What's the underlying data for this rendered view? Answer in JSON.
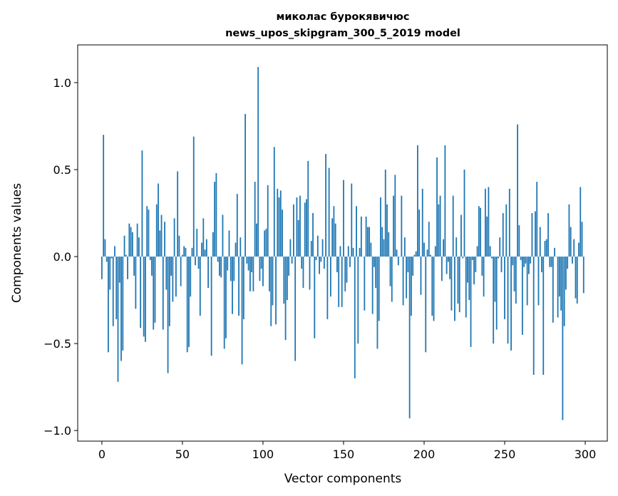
{
  "chart_data": {
    "type": "bar",
    "title": [
      "миколас бурокявичюс",
      "news_upos_skipgram_300_5_2019 model"
    ],
    "xlabel": "Vector components",
    "ylabel": "Components values",
    "xlim": [
      -15,
      313.7
    ],
    "ylim": [
      -1.061,
      1.217
    ],
    "xticks": [
      0,
      50,
      100,
      150,
      200,
      250,
      300
    ],
    "xtick_labels": [
      "0",
      "50",
      "100",
      "150",
      "200",
      "250",
      "300"
    ],
    "yticks": [
      -1.0,
      -0.5,
      0.0,
      0.5,
      1.0
    ],
    "ytick_labels": [
      "−1.0",
      "−0.5",
      "0.0",
      "0.5",
      "1.0"
    ],
    "grid": false,
    "bar_color": "#1f77b4",
    "values": [
      -0.13,
      0.7,
      0.1,
      -0.03,
      -0.55,
      -0.19,
      -0.01,
      -0.4,
      0.06,
      -0.36,
      -0.72,
      -0.15,
      -0.6,
      -0.54,
      0.12,
      0.01,
      -0.13,
      0.19,
      0.17,
      0.14,
      -0.11,
      -0.3,
      0.19,
      0.11,
      -0.41,
      0.61,
      -0.46,
      -0.49,
      0.29,
      0.27,
      -0.02,
      -0.11,
      -0.42,
      -0.38,
      0.3,
      0.42,
      0.15,
      0.24,
      -0.42,
      0.2,
      -0.19,
      -0.67,
      -0.4,
      -0.11,
      -0.26,
      0.22,
      -0.23,
      0.49,
      0.12,
      -0.17,
      0.01,
      0.06,
      0.05,
      -0.55,
      -0.52,
      -0.23,
      0.05,
      0.69,
      -0.05,
      0.16,
      -0.07,
      -0.34,
      0.08,
      0.22,
      0.04,
      0.1,
      -0.18,
      0.0,
      -0.57,
      0.14,
      0.43,
      0.48,
      -0.03,
      -0.11,
      -0.12,
      0.24,
      -0.53,
      -0.47,
      -0.08,
      0.15,
      -0.14,
      -0.33,
      -0.14,
      0.08,
      0.36,
      -0.34,
      0.11,
      -0.62,
      -0.36,
      0.82,
      -0.04,
      -0.08,
      -0.2,
      -0.09,
      -0.2,
      0.43,
      0.19,
      1.09,
      -0.14,
      -0.07,
      -0.17,
      0.15,
      0.16,
      0.41,
      -0.2,
      -0.4,
      -0.28,
      0.63,
      -0.39,
      0.39,
      0.34,
      0.38,
      0.27,
      -0.27,
      -0.48,
      -0.25,
      -0.11,
      0.1,
      -0.04,
      0.3,
      -0.6,
      0.34,
      0.21,
      0.35,
      -0.07,
      -0.18,
      0.31,
      0.33,
      0.55,
      -0.19,
      0.09,
      0.25,
      -0.47,
      -0.02,
      0.12,
      -0.1,
      -0.03,
      0.1,
      -0.07,
      0.59,
      -0.36,
      0.51,
      -0.23,
      0.22,
      0.29,
      0.19,
      -0.09,
      -0.29,
      0.06,
      -0.29,
      0.44,
      -0.2,
      -0.15,
      0.06,
      -0.06,
      0.42,
      0.05,
      -0.7,
      0.29,
      -0.5,
      0.05,
      0.23,
      0.0,
      -0.31,
      0.23,
      0.17,
      0.17,
      0.08,
      -0.33,
      -0.06,
      -0.18,
      -0.53,
      -0.37,
      0.34,
      0.17,
      0.1,
      0.5,
      0.3,
      0.14,
      -0.17,
      -0.26,
      0.35,
      0.47,
      0.04,
      -0.05,
      0.0,
      0.35,
      -0.28,
      0.11,
      -0.24,
      -0.09,
      -0.93,
      -0.34,
      -0.11,
      0.01,
      0.03,
      0.64,
      0.27,
      -0.22,
      0.39,
      0.08,
      -0.55,
      0.04,
      0.2,
      0.01,
      -0.34,
      -0.37,
      0.06,
      0.57,
      0.3,
      0.35,
      -0.14,
      0.1,
      0.64,
      -0.1,
      -0.03,
      -0.13,
      -0.31,
      0.35,
      -0.37,
      0.11,
      -0.27,
      -0.32,
      0.24,
      -0.01,
      0.5,
      -0.35,
      -0.15,
      -0.25,
      -0.52,
      -0.02,
      -0.16,
      -0.09,
      0.06,
      0.29,
      0.28,
      -0.11,
      -0.23,
      0.39,
      0.23,
      0.4,
      0.06,
      -0.01,
      -0.5,
      -0.26,
      -0.42,
      -0.01,
      0.11,
      -0.09,
      0.25,
      -0.36,
      0.3,
      -0.5,
      0.39,
      -0.54,
      -0.05,
      -0.2,
      -0.27,
      0.76,
      0.18,
      -0.02,
      -0.45,
      -0.06,
      -0.04,
      -0.28,
      -0.1,
      -0.04,
      0.25,
      -0.68,
      0.26,
      0.43,
      -0.28,
      0.17,
      -0.09,
      -0.68,
      0.09,
      0.1,
      0.25,
      -0.06,
      -0.06,
      -0.38,
      0.05,
      0.0,
      -0.35,
      -0.23,
      -0.31,
      -0.94,
      -0.4,
      -0.19,
      -0.07,
      0.3,
      0.17,
      -0.04,
      0.1,
      -0.24,
      -0.27,
      0.08,
      0.4,
      0.2,
      -0.21
    ]
  }
}
